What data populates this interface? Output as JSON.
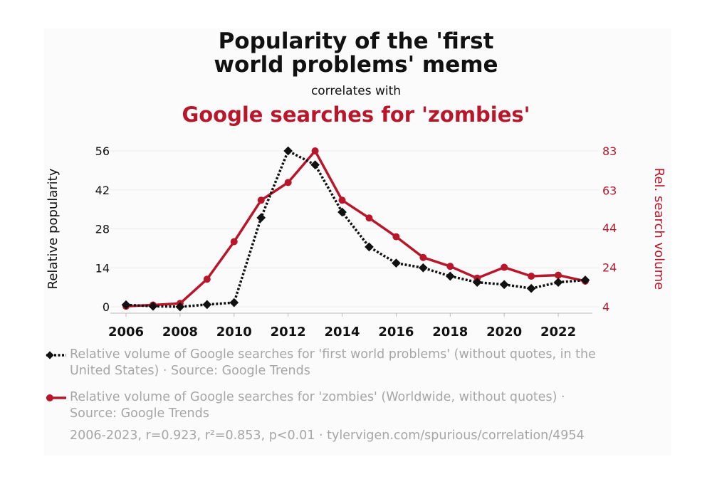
{
  "title": "Popularity of the 'first\nworld problems' meme",
  "subtitle": "correlates with",
  "title2": "Google searches for 'zombies'",
  "colors": {
    "meme": "#111111",
    "zombies": "#b8172b",
    "legend_text": "#a6a6a6"
  },
  "chart_data": {
    "type": "line",
    "x": [
      2006,
      2007,
      2008,
      2009,
      2010,
      2011,
      2012,
      2013,
      2014,
      2015,
      2016,
      2017,
      2018,
      2019,
      2020,
      2021,
      2022,
      2023
    ],
    "x_ticks": [
      "2006",
      "2008",
      "2010",
      "2012",
      "2014",
      "2016",
      "2018",
      "2020",
      "2022"
    ],
    "left_axis": {
      "label": "Relative popularity",
      "ticks": [
        "0",
        "14",
        "28",
        "42",
        "56"
      ],
      "range": [
        0,
        56
      ]
    },
    "right_axis": {
      "label": "Rel. search volume",
      "ticks": [
        "4",
        "24",
        "44",
        "63",
        "83"
      ],
      "range": [
        4,
        83
      ]
    },
    "series": [
      {
        "name": "Relative volume of Google searches for 'first world problems' (without quotes, in the United States) · Source: Google Trends",
        "axis": "left",
        "style": "dotted",
        "marker": "diamond",
        "color": "#111111",
        "values": [
          0.7,
          0.2,
          0.0,
          0.8,
          1.5,
          32,
          56,
          51,
          34,
          21.5,
          15.7,
          14,
          11,
          8.8,
          8,
          6.6,
          8.8,
          9.6
        ]
      },
      {
        "name": "Relative volume of Google searches for 'zombies' (Worldwide, without quotes) · Source: Google Trends",
        "axis": "right",
        "style": "solid",
        "marker": "circle",
        "color": "#b8172b",
        "values": [
          4.3,
          4.9,
          5.7,
          18,
          37,
          58,
          67,
          83,
          58,
          49,
          39.5,
          29,
          24.5,
          18.5,
          24,
          19.5,
          20,
          17
        ]
      }
    ],
    "grid": true
  },
  "footnote": "2006-2023, r=0.923, r²=0.853, p<0.01 · tylervigen.com/spurious/correlation/4954"
}
